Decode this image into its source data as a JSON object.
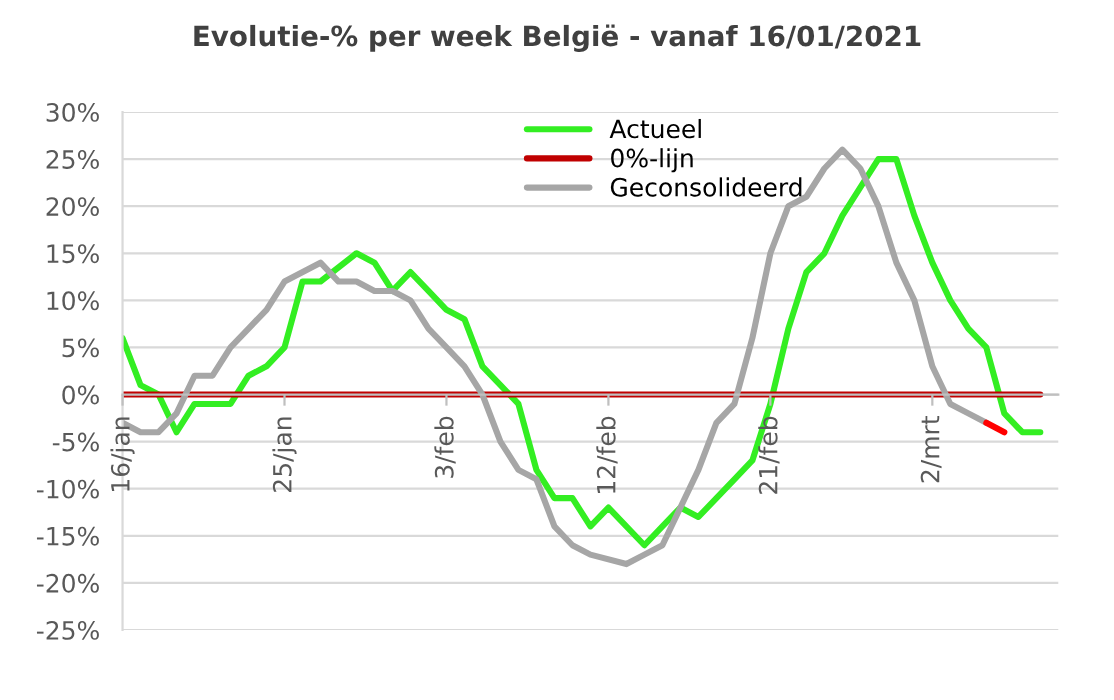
{
  "chart_data": {
    "type": "line",
    "title": "Evolutie-% per week België - vanaf 16/01/2021",
    "xlim": [
      "2021-01-16",
      "2021-03-09"
    ],
    "xticks": [
      {
        "value": "2021-01-16",
        "label": "16/jan"
      },
      {
        "value": "2021-01-25",
        "label": "25/jan"
      },
      {
        "value": "2021-02-03",
        "label": "3/feb"
      },
      {
        "value": "2021-02-12",
        "label": "12/feb"
      },
      {
        "value": "2021-02-21",
        "label": "21/feb"
      },
      {
        "value": "2021-03-02",
        "label": "2/mrt"
      }
    ],
    "ylim": [
      -25,
      30
    ],
    "yticks": [
      {
        "value": -25,
        "label": "-25%"
      },
      {
        "value": -20,
        "label": "-20%"
      },
      {
        "value": -15,
        "label": "-15%"
      },
      {
        "value": -10,
        "label": "-10%"
      },
      {
        "value": -5,
        "label": "-5%"
      },
      {
        "value": 0,
        "label": "0%"
      },
      {
        "value": 5,
        "label": "5%"
      },
      {
        "value": 10,
        "label": "10%"
      },
      {
        "value": 15,
        "label": "15%"
      },
      {
        "value": 20,
        "label": "20%"
      },
      {
        "value": 25,
        "label": "25%"
      },
      {
        "value": 30,
        "label": "30%"
      }
    ],
    "grid": "y",
    "legend": "top",
    "marker": "none",
    "line_style": "solid",
    "series": [
      {
        "name": "Actueel",
        "color": "#33ee22",
        "x": [
          "2021-01-16",
          "2021-01-17",
          "2021-01-18",
          "2021-01-19",
          "2021-01-20",
          "2021-01-21",
          "2021-01-22",
          "2021-01-23",
          "2021-01-24",
          "2021-01-25",
          "2021-01-26",
          "2021-01-27",
          "2021-01-29",
          "2021-01-30",
          "2021-01-31",
          "2021-02-01",
          "2021-02-02",
          "2021-02-03",
          "2021-02-04",
          "2021-02-05",
          "2021-02-06",
          "2021-02-07",
          "2021-02-08",
          "2021-02-09",
          "2021-02-10",
          "2021-02-11",
          "2021-02-12",
          "2021-02-14",
          "2021-02-15",
          "2021-02-16",
          "2021-02-17",
          "2021-02-19",
          "2021-02-20",
          "2021-02-21",
          "2021-02-22",
          "2021-02-23",
          "2021-02-24",
          "2021-02-25",
          "2021-02-26",
          "2021-02-27",
          "2021-02-28",
          "2021-03-01",
          "2021-03-02",
          "2021-03-03",
          "2021-03-04",
          "2021-03-05",
          "2021-03-06",
          "2021-03-07",
          "2021-03-08"
        ],
        "values": [
          6,
          1,
          0,
          -4,
          -1,
          -1,
          -1,
          2,
          3,
          5,
          12,
          12,
          15,
          14,
          11,
          13,
          11,
          9,
          8,
          3,
          1,
          -1,
          -8,
          -11,
          -11,
          -14,
          -12,
          -16,
          -14,
          -12,
          -13,
          -9,
          -7,
          -1,
          7,
          13,
          15,
          19,
          22,
          25,
          25,
          19,
          14,
          10,
          7,
          5,
          -2,
          -4,
          -4
        ]
      },
      {
        "name": "0%-lijn",
        "color": "#c00000",
        "x": [
          "2021-01-16",
          "2021-03-08"
        ],
        "values": [
          0,
          0
        ]
      },
      {
        "name": "Geconsolideerd",
        "color": "#a6a6a6",
        "x": [
          "2021-01-16",
          "2021-01-17",
          "2021-01-18",
          "2021-01-19",
          "2021-01-20",
          "2021-01-21",
          "2021-01-22",
          "2021-01-23",
          "2021-01-24",
          "2021-01-25",
          "2021-01-27",
          "2021-01-28",
          "2021-01-29",
          "2021-01-30",
          "2021-01-31",
          "2021-02-01",
          "2021-02-02",
          "2021-02-03",
          "2021-02-04",
          "2021-02-05",
          "2021-02-06",
          "2021-02-07",
          "2021-02-08",
          "2021-02-09",
          "2021-02-10",
          "2021-02-11",
          "2021-02-13",
          "2021-02-14",
          "2021-02-15",
          "2021-02-17",
          "2021-02-18",
          "2021-02-19",
          "2021-02-20",
          "2021-02-21",
          "2021-02-22",
          "2021-02-23",
          "2021-02-24",
          "2021-02-25",
          "2021-02-26",
          "2021-02-27",
          "2021-02-28",
          "2021-03-01",
          "2021-03-02",
          "2021-03-03",
          "2021-03-04",
          "2021-03-05"
        ],
        "values": [
          -3,
          -4,
          -4,
          -2,
          2,
          2,
          5,
          7,
          9,
          12,
          14,
          12,
          12,
          11,
          11,
          10,
          7,
          5,
          3,
          0,
          -5,
          -8,
          -9,
          -14,
          -16,
          -17,
          -18,
          -17,
          -16,
          -8,
          -3,
          -1,
          6,
          15,
          20,
          21,
          24,
          26,
          24,
          20,
          14,
          10,
          3,
          -1,
          -2,
          -3
        ]
      },
      {
        "color": "#ff0000",
        "x": [
          "2021-03-05",
          "2021-03-06"
        ],
        "values": [
          -3,
          -4
        ]
      }
    ]
  }
}
